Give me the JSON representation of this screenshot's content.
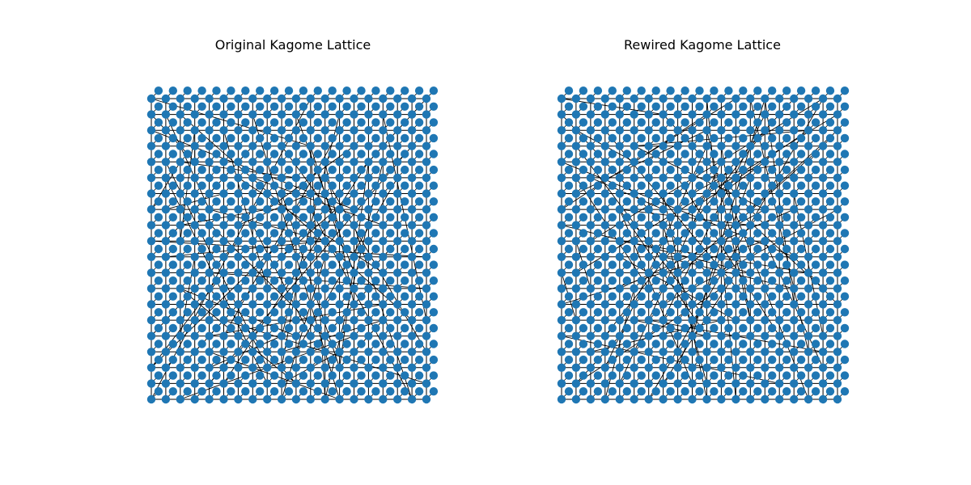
{
  "figure": {
    "panels": [
      {
        "title": "Original Kagome Lattice"
      },
      {
        "title": "Rewired Kagome Lattice"
      }
    ]
  },
  "colors": {
    "node": "#1f77b4",
    "edge": "#000000",
    "background": "#ffffff"
  },
  "graph": {
    "type": "kagome-lattice network",
    "rows": 20,
    "columns": 20,
    "rewired": true
  }
}
